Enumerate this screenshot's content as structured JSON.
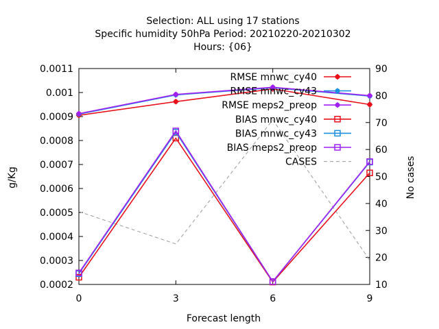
{
  "chart_data": {
    "type": "line",
    "title_lines": [
      "Selection: ALL using    17 stations",
      "Specific humidity 50hPa   Period: 20210220-20210302",
      "Hours: {06}"
    ],
    "xlabel": "Forecast length",
    "ylabel": "g/Kg",
    "y2label": "No cases",
    "x": [
      0,
      3,
      6,
      9
    ],
    "xlim": [
      0,
      9
    ],
    "xticks": [
      "0",
      "3",
      "6",
      "9"
    ],
    "ylim": [
      0.0002,
      0.0011
    ],
    "yticks": [
      "0.0002",
      "0.0003",
      "0.0004",
      "0.0005",
      "0.0006",
      "0.0007",
      "0.0008",
      "0.0009",
      "0.001",
      "0.0011"
    ],
    "y2lim": [
      10,
      90
    ],
    "y2ticks": [
      "10",
      "20",
      "30",
      "40",
      "50",
      "60",
      "70",
      "80",
      "90"
    ],
    "grid": false,
    "legend_position": "top-right",
    "series": [
      {
        "name": "RMSE mnwc_cy40",
        "color": "#e8101a",
        "marker": "filled-circle",
        "dash": false,
        "axis": "y",
        "values": [
          0.000905,
          0.000962,
          0.001015,
          0.00095
        ]
      },
      {
        "name": "RMSE mnwc_cy43",
        "color": "#1a8fe0",
        "marker": "filled-circle",
        "dash": false,
        "axis": "y",
        "values": [
          0.00091,
          0.00099,
          0.00102,
          0.000985
        ]
      },
      {
        "name": "RMSE meps2_preop",
        "color": "#a020f0",
        "marker": "filled-circle",
        "dash": false,
        "axis": "y",
        "values": [
          0.000912,
          0.000992,
          0.001022,
          0.000987
        ]
      },
      {
        "name": "BIAS mnwc_cy40",
        "color": "#e8101a",
        "marker": "open-square",
        "dash": false,
        "axis": "y",
        "values": [
          0.00023,
          0.00081,
          0.00021,
          0.000665
        ]
      },
      {
        "name": "BIAS mnwc_cy43",
        "color": "#1a8fe0",
        "marker": "open-square",
        "dash": false,
        "axis": "y",
        "values": [
          0.000245,
          0.000835,
          0.000212,
          0.00071
        ]
      },
      {
        "name": "BIAS meps2_preop",
        "color": "#a020f0",
        "marker": "open-square",
        "dash": false,
        "axis": "y",
        "values": [
          0.000248,
          0.00084,
          0.000212,
          0.000712
        ]
      },
      {
        "name": "CASES",
        "color": "#999999",
        "marker": "none",
        "dash": true,
        "axis": "y2",
        "values": [
          37,
          25,
          71,
          19
        ]
      }
    ]
  }
}
